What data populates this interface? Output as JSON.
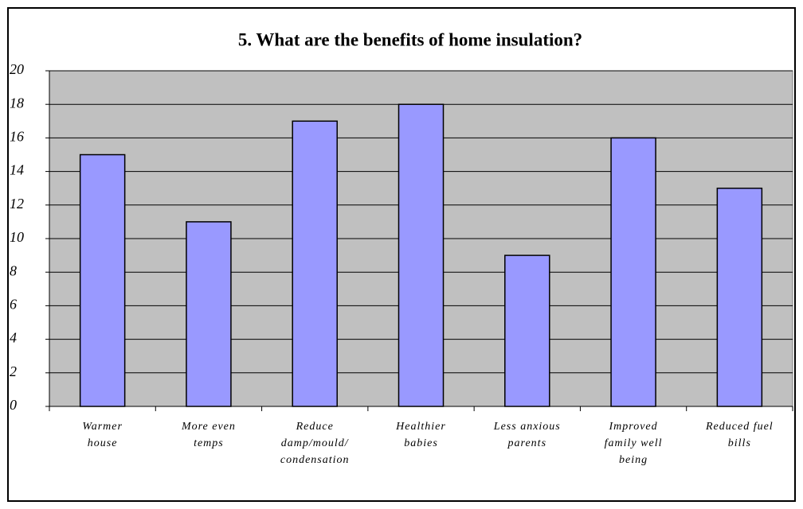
{
  "chart_data": {
    "type": "bar",
    "title": "5. What are the benefits of home insulation?",
    "categories": [
      "Warmer\nhouse",
      "More even\ntemps",
      "Reduce\ndamp/mould/\ncondensation",
      "Healthier\nbabies",
      "Less anxious\nparents",
      "Improved\nfamily well\nbeing",
      "Reduced fuel\nbills"
    ],
    "values": [
      15,
      11,
      17,
      18,
      9,
      16,
      13
    ],
    "color": "#9999ff",
    "ylim": [
      0,
      20
    ],
    "yticks": [
      0,
      2,
      4,
      6,
      8,
      10,
      12,
      14,
      16,
      18,
      20
    ],
    "grid": true
  }
}
